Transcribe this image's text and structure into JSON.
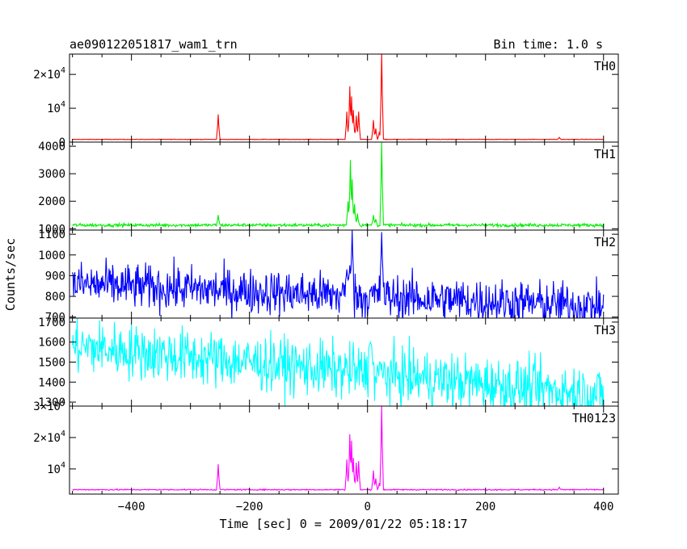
{
  "header": {
    "obs_id": "ae090122051817_wam1_trn",
    "bin_time": "Bin time: 1.0 s"
  },
  "chart_data": {
    "type": "line",
    "xlabel": "Time [sec] 0 = 2009/01/22 05:18:17",
    "ylabel": "Counts/sec",
    "xlim": [
      -505,
      425
    ],
    "x_ticks": [
      -400,
      -200,
      0,
      200,
      400
    ],
    "x_tick_labels": [
      "−400",
      "−200",
      "0",
      "200",
      "400"
    ],
    "panels": [
      {
        "name": "TH0",
        "color": "#ff0000",
        "ylim": [
          0,
          26000
        ],
        "y_ticks": [
          {
            "v": 0,
            "base": "0",
            "exp": ""
          },
          {
            "v": 10000,
            "base": "10",
            "exp": "4"
          },
          {
            "v": 20000,
            "base": "2×10",
            "exp": "4"
          }
        ],
        "baseline": 800,
        "noise": 40,
        "trend": 0,
        "events": [
          [
            -253,
            8200
          ],
          [
            -35,
            9000
          ],
          [
            -30,
            16500
          ],
          [
            -27,
            13500
          ],
          [
            -24,
            9500
          ],
          [
            -19,
            7800
          ],
          [
            -15,
            9000
          ],
          [
            -6,
            600
          ],
          [
            10,
            6500
          ],
          [
            14,
            4000
          ],
          [
            20,
            3000
          ],
          [
            24,
            26500
          ],
          [
            325,
            1400
          ]
        ]
      },
      {
        "name": "TH1",
        "color": "#00ee00",
        "ylim": [
          950,
          4150
        ],
        "y_ticks": [
          {
            "v": 1000,
            "base": "1000",
            "exp": ""
          },
          {
            "v": 2000,
            "base": "2000",
            "exp": ""
          },
          {
            "v": 3000,
            "base": "3000",
            "exp": ""
          },
          {
            "v": 4000,
            "base": "4000",
            "exp": ""
          }
        ],
        "baseline": 1130,
        "noise": 30,
        "trend": 0,
        "events": [
          [
            -253,
            1500
          ],
          [
            -33,
            2000
          ],
          [
            -29,
            3500
          ],
          [
            -26,
            2800
          ],
          [
            -22,
            1900
          ],
          [
            -17,
            1550
          ],
          [
            10,
            1500
          ],
          [
            14,
            1350
          ],
          [
            24,
            4150
          ]
        ]
      },
      {
        "name": "TH2",
        "color": "#0000ff",
        "ylim": [
          695,
          1120
        ],
        "y_ticks": [
          {
            "v": 700,
            "base": "700",
            "exp": ""
          },
          {
            "v": 800,
            "base": "800",
            "exp": ""
          },
          {
            "v": 900,
            "base": "900",
            "exp": ""
          },
          {
            "v": 1000,
            "base": "1000",
            "exp": ""
          },
          {
            "v": 1100,
            "base": "1100",
            "exp": ""
          }
        ],
        "baseline": 860,
        "noise": 55,
        "trend": -0.12,
        "events": [
          [
            -35,
            930
          ],
          [
            -30,
            950
          ],
          [
            -26,
            1120
          ],
          [
            24,
            1110
          ]
        ]
      },
      {
        "name": "TH3",
        "color": "#00ffff",
        "ylim": [
          1280,
          1720
        ],
        "y_ticks": [
          {
            "v": 1300,
            "base": "1300",
            "exp": ""
          },
          {
            "v": 1400,
            "base": "1400",
            "exp": ""
          },
          {
            "v": 1500,
            "base": "1500",
            "exp": ""
          },
          {
            "v": 1600,
            "base": "1600",
            "exp": ""
          },
          {
            "v": 1700,
            "base": "1700",
            "exp": ""
          }
        ],
        "baseline": 1580,
        "noise": 70,
        "trend": -0.27,
        "events": [
          [
            5,
            1600
          ]
        ]
      },
      {
        "name": "TH0123",
        "color": "#ff00ff",
        "ylim": [
          2000,
          30000
        ],
        "y_ticks": [
          {
            "v": 10000,
            "base": "10",
            "exp": "4"
          },
          {
            "v": 20000,
            "base": "2×10",
            "exp": "4"
          },
          {
            "v": 30000,
            "base": "3×10",
            "exp": "4"
          }
        ],
        "baseline": 3400,
        "noise": 100,
        "trend": 0,
        "events": [
          [
            -253,
            11500
          ],
          [
            -35,
            13000
          ],
          [
            -30,
            21000
          ],
          [
            -27,
            19000
          ],
          [
            -24,
            13500
          ],
          [
            -19,
            12000
          ],
          [
            -15,
            12500
          ],
          [
            10,
            9500
          ],
          [
            14,
            7000
          ],
          [
            20,
            5500
          ],
          [
            24,
            30000
          ],
          [
            325,
            4200
          ]
        ]
      }
    ]
  }
}
